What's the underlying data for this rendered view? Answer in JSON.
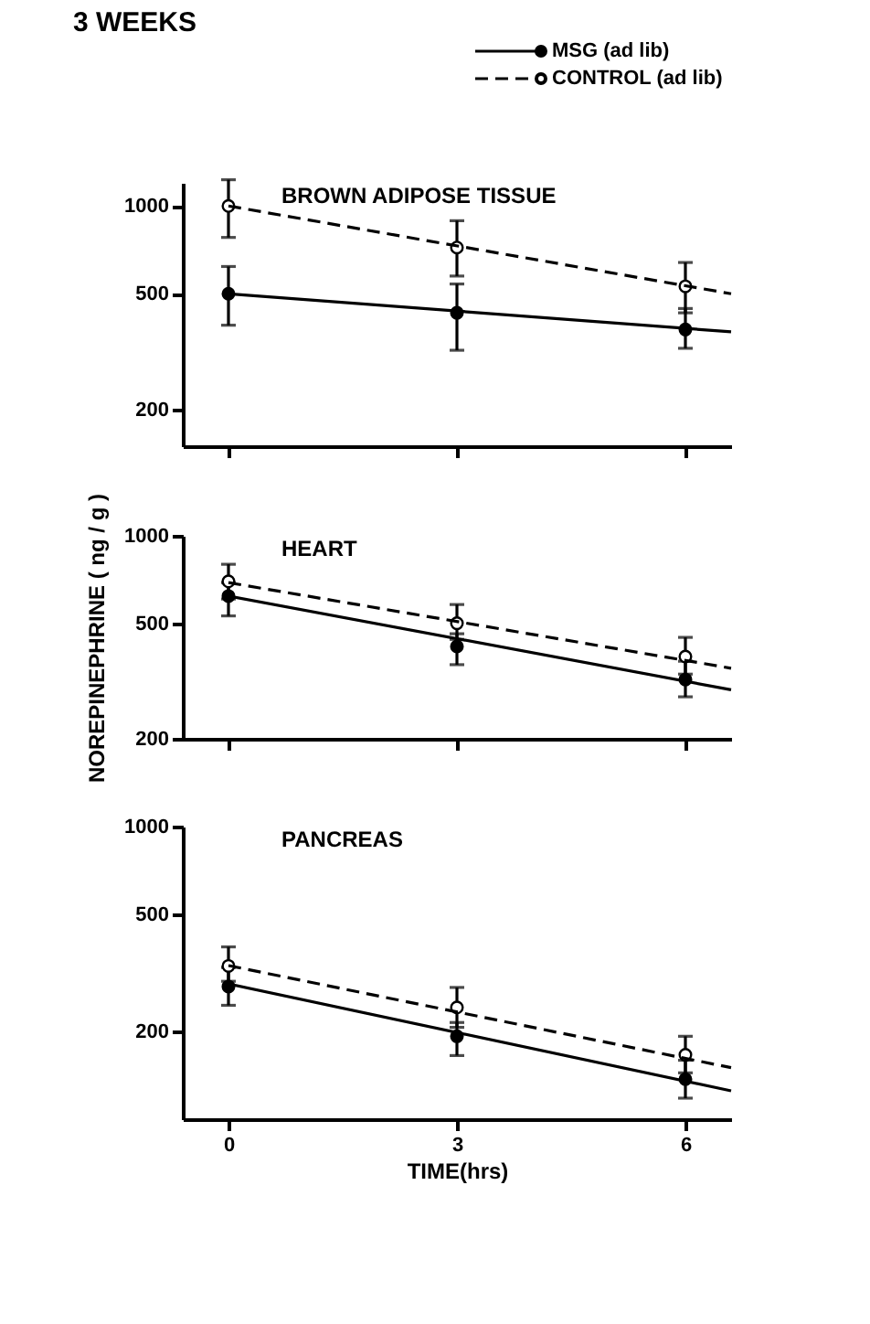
{
  "chart_data": [
    {
      "type": "scatter",
      "title": "BROWN ADIPOSE TISSUE",
      "annotations": [
        "3 WEEKS"
      ],
      "legend": "top right",
      "log": "y",
      "grid": false,
      "tick_labels": "y",
      "xlim": [
        -0.6,
        6.6
      ],
      "xticks": [
        {
          "value": 0,
          "label": null
        },
        {
          "value": 3,
          "label": null
        },
        {
          "value": 6,
          "label": null
        }
      ],
      "ylim": [
        150,
        1200
      ],
      "yticks": [
        200,
        500,
        1000
      ],
      "series": [
        {
          "name": "MSG (ad lib)",
          "marker": "circle",
          "color": "#000000",
          "x": [
            0,
            3,
            6
          ],
          "values": [
            500,
            430,
            377
          ],
          "errors": [
            [
              390,
              620
            ],
            [
              320,
              540
            ],
            [
              325,
              445
            ]
          ]
        },
        {
          "type": "line",
          "marker": "none",
          "line_style": "solid",
          "color": "#000000",
          "x": [
            0,
            6.6
          ],
          "values": [
            500,
            370
          ]
        },
        {
          "name": "CONTROL (ad lib)",
          "marker": "circle",
          "color": "#ffffff",
          "x": [
            0,
            3,
            6
          ],
          "values": [
            1000,
            720,
            530
          ],
          "errors": [
            [
              780,
              1230
            ],
            [
              575,
              890
            ],
            [
              430,
              640
            ]
          ]
        },
        {
          "type": "line",
          "marker": "none",
          "line_style": "dashed",
          "color": "#000000",
          "x": [
            0,
            6.6
          ],
          "values": [
            1000,
            500
          ]
        }
      ]
    },
    {
      "type": "scatter",
      "title": "HEART",
      "ylabel": "NOREPINEPHRINE ( ng / g )",
      "log": "y",
      "grid": false,
      "tick_labels": "y",
      "xlim": [
        -0.6,
        6.6
      ],
      "xticks": [
        {
          "value": 0,
          "label": null
        },
        {
          "value": 3,
          "label": null
        },
        {
          "value": 6,
          "label": null
        }
      ],
      "ylim": [
        200,
        1000
      ],
      "yticks": [
        200,
        500,
        1000
      ],
      "series": [
        {
          "marker": "circle",
          "color": "#000000",
          "x": [
            0,
            3,
            6
          ],
          "values": [
            620,
            416,
            320
          ],
          "errors": [
            [
              530,
              690
            ],
            [
              360,
              460
            ],
            [
              279,
              370
            ]
          ]
        },
        {
          "type": "line",
          "marker": "none",
          "line_style": "solid",
          "color": "#000000",
          "x": [
            0,
            6.6
          ],
          "values": [
            620,
            295
          ]
        },
        {
          "marker": "circle",
          "color": "#ffffff",
          "x": [
            0,
            3,
            6
          ],
          "values": [
            697,
            500,
            384
          ],
          "errors": [
            [
              606,
              798
            ],
            [
              440,
              580
            ],
            [
              334,
              447
            ]
          ]
        },
        {
          "type": "line",
          "marker": "none",
          "line_style": "dashed",
          "color": "#000000",
          "x": [
            0,
            6.6
          ],
          "values": [
            690,
            350
          ]
        }
      ]
    },
    {
      "type": "scatter",
      "title": "PANCREAS",
      "xlabel": "TIME(hrs)",
      "log": "y",
      "grid": false,
      "xlim": [
        -0.6,
        6.6
      ],
      "xticks": [
        0,
        3,
        6
      ],
      "ylim": [
        100,
        1000
      ],
      "yticks": [
        200,
        500,
        1000
      ],
      "series": [
        {
          "marker": "circle",
          "color": "#000000",
          "x": [
            0,
            3,
            6
          ],
          "values": [
            284,
            192,
            137
          ],
          "errors": [
            [
              245,
              330
            ],
            [
              165,
              214
            ],
            [
              118,
              159
            ]
          ]
        },
        {
          "type": "line",
          "marker": "none",
          "line_style": "solid",
          "color": "#000000",
          "x": [
            0,
            6.6
          ],
          "values": [
            290,
            125
          ]
        },
        {
          "marker": "circle",
          "color": "#ffffff",
          "x": [
            0,
            3,
            6
          ],
          "values": [
            334,
            241,
            166
          ],
          "errors": [
            [
              296,
              388
            ],
            [
              206,
              282
            ],
            [
              144,
              192
            ]
          ]
        },
        {
          "type": "line",
          "marker": "none",
          "line_style": "dashed",
          "color": "#000000",
          "x": [
            0,
            6.6
          ],
          "values": [
            335,
            150
          ]
        }
      ]
    }
  ]
}
